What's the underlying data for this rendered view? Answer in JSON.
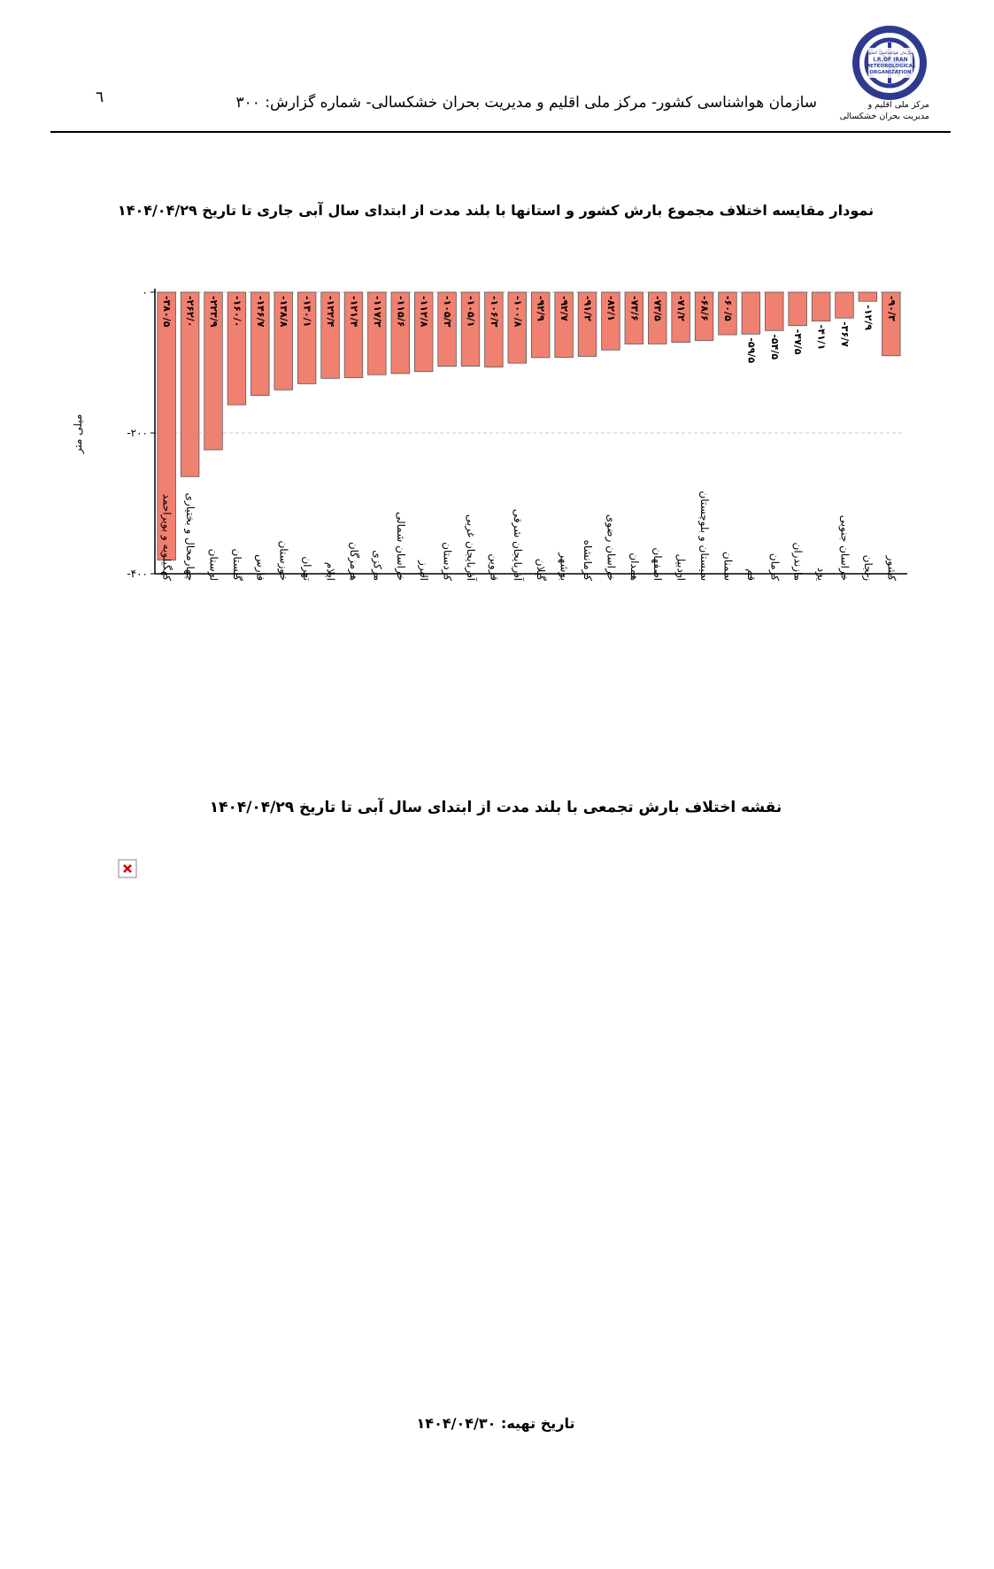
{
  "header": {
    "page_number": "٦",
    "text": "سازمان هواشناسی کشور- مرکز ملی اقلیم و مدیریت بحران خشکسالی- شماره گزارش: ٣٠٠",
    "logo": {
      "lines": [
        "سازمان هواشناسی کشور",
        "I.R.OF IRAN",
        "METEOROLOGICAL",
        "ORGANIZATION"
      ],
      "caption_line1": "مرکز ملی اقلیم و",
      "caption_line2": "مدیریت بحران خشکسالی"
    }
  },
  "chart_title": "نمودار مقایسه اختلاف مجموع بارش کشور و استانها با بلند مدت از ابتدای سال آبی جاری تا تاریخ ۱۴۰۴/۰۴/۲۹",
  "chart_data": {
    "type": "bar",
    "title": "نمودار مقایسه اختلاف مجموع بارش کشور و استانها با بلند مدت از ابتدای سال آبی جاری تا تاریخ ۱۴۰۴/۰۴/۲۹",
    "ylabel": "میلی متر",
    "xlabel": "",
    "ylim": [
      -400,
      0
    ],
    "yticks": [
      0,
      -200,
      -400
    ],
    "ytick_labels": [
      "۰",
      "-۲۰۰",
      "-۴۰۰"
    ],
    "grid": true,
    "bar_color": "#f08070",
    "categories": [
      "کهگیلویه و بویراحمد",
      "چهارمحال و بختیاری",
      "لرستان",
      "گلستان",
      "فارس",
      "خوزستان",
      "تهران",
      "ایلام",
      "هرمزگان",
      "مرکزی",
      "خراسان شمالی",
      "البرز",
      "کردستان",
      "آذربایجان غربی",
      "قزوین",
      "آذربایجان شرقی",
      "گیلان",
      "بوشهر",
      "کرمانشاه",
      "خراسان رضوی",
      "همدان",
      "اصفهان",
      "اردبیل",
      "سیستان و بلوچستان",
      "سمنان",
      "قم",
      "کرمان",
      "مازندران",
      "یزد",
      "خراسان جنوبی",
      "زنجان",
      "کشور"
    ],
    "values": [
      -380.5,
      -262.0,
      -223.9,
      -160.0,
      -146.7,
      -138.8,
      -130.1,
      -122.4,
      -121.4,
      -117.3,
      -115.6,
      -112.8,
      -105.3,
      -105.1,
      -106.3,
      -100.8,
      -92.9,
      -92.7,
      -91.2,
      -82.1,
      -73.6,
      -73.5,
      -71.2,
      -68.6,
      -60.5,
      -59.5,
      -54.5,
      -47.5,
      -41.1,
      -36.7,
      -12.9,
      -90.3
    ],
    "value_labels": [
      "-۳۸۰/۵",
      "-۲۶۲/۰",
      "-۲۲۳/۹",
      "-۱۶۰/۰",
      "-۱۴۶/۷",
      "-۱۳۸/۸",
      "-۱۳۰/۱",
      "-۱۲۲/۴",
      "-۱۲۱/۴",
      "-۱۱۷/۳",
      "-۱۱۵/۶",
      "-۱۱۲/۸",
      "-۱۰۵/۳",
      "-۱۰۵/۱",
      "-۱۰۶/۳",
      "-۱۰۰/۸",
      "-۹۲/۹",
      "-۹۲/۷",
      "-۹۱/۲",
      "-۸۲/۱",
      "-۷۳/۶",
      "-۷۳/۵",
      "-۷۱/۲",
      "-۶۸/۶",
      "-۶۰/۵",
      "-۵۹/۵",
      "-۵۴/۵",
      "-۴۷/۵",
      "-۴۱/۱",
      "-۳۶/۷",
      "-۱۲/۹",
      "-۹۰/۳"
    ]
  },
  "map_title": "نقشه اختلاف بارش تجمعی با بلند مدت از ابتدای سال آبی تا تاریخ  ۱۴۰۴/۰۴/۲۹",
  "footer": {
    "prepared_date": "تاریخ تهیه:  ۱۴۰۴/۰۴/۳۰"
  }
}
